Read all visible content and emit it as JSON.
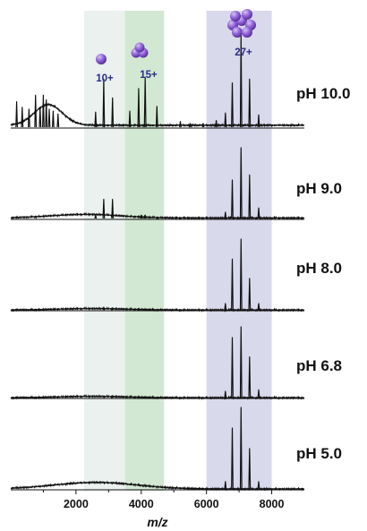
{
  "chart_data": {
    "type": "line",
    "title": "",
    "xlabel": "m/z",
    "ylabel": "",
    "xlim": [
      0,
      9000
    ],
    "x_ticks": [
      "2000",
      "4000",
      "6000",
      "8000"
    ],
    "x_tick_values": [
      2000,
      4000,
      6000,
      8000
    ],
    "grid": false,
    "highlight_bands": [
      {
        "x_range": [
          2250,
          3500
        ],
        "color": "#eaf1ee"
      },
      {
        "x_range": [
          3500,
          4700
        ],
        "color": "#d2e8d2"
      },
      {
        "x_range": [
          6000,
          8000
        ],
        "color": "#d9d9ec"
      }
    ],
    "annotations": [
      {
        "label": "10+",
        "x": 2850,
        "icon": "single-sphere-icon"
      },
      {
        "label": "15+",
        "x": 4120,
        "icon": "sphere-dimer-icon"
      },
      {
        "label": "27+",
        "x": 7050,
        "icon": "sphere-cluster-icon"
      }
    ],
    "series": [
      {
        "name": "pH 10.0",
        "baseline": 0.03,
        "broad_hump": {
          "center": 1150,
          "width": 600,
          "height": 0.22
        },
        "peaks": [
          [
            180,
            0.28
          ],
          [
            350,
            0.22
          ],
          [
            560,
            0.2
          ],
          [
            760,
            0.35
          ],
          [
            900,
            0.22
          ],
          [
            1000,
            0.35
          ],
          [
            1090,
            0.3
          ],
          [
            1180,
            0.2
          ],
          [
            1300,
            0.18
          ],
          [
            1450,
            0.15
          ],
          [
            2600,
            0.17
          ],
          [
            2850,
            0.52
          ],
          [
            3120,
            0.32
          ],
          [
            3650,
            0.18
          ],
          [
            3920,
            0.42
          ],
          [
            4120,
            0.54
          ],
          [
            4480,
            0.23
          ],
          [
            5200,
            0.07
          ],
          [
            5500,
            0.05
          ],
          [
            5900,
            0.05
          ],
          [
            6300,
            0.08
          ],
          [
            6580,
            0.16
          ],
          [
            6790,
            0.48
          ],
          [
            7060,
            1.0
          ],
          [
            7320,
            0.52
          ],
          [
            7600,
            0.14
          ]
        ]
      },
      {
        "name": "pH 9.0",
        "baseline": 0.02,
        "broad_hump": {
          "center": 2300,
          "width": 1500,
          "height": 0.05
        },
        "peaks": [
          [
            2600,
            0.06
          ],
          [
            2850,
            0.28
          ],
          [
            3120,
            0.28
          ],
          [
            4000,
            0.06
          ],
          [
            4120,
            0.06
          ],
          [
            6580,
            0.1
          ],
          [
            6790,
            0.55
          ],
          [
            7060,
            1.0
          ],
          [
            7320,
            0.62
          ],
          [
            7600,
            0.16
          ]
        ]
      },
      {
        "name": "pH 8.0",
        "baseline": 0.01,
        "broad_hump": {
          "center": 2500,
          "width": 1500,
          "height": 0.02
        },
        "peaks": [
          [
            2850,
            0.05
          ],
          [
            3120,
            0.04
          ],
          [
            6580,
            0.1
          ],
          [
            6790,
            0.72
          ],
          [
            7060,
            1.0
          ],
          [
            7320,
            0.45
          ],
          [
            7600,
            0.1
          ]
        ]
      },
      {
        "name": "pH 6.8",
        "baseline": 0.01,
        "broad_hump": {
          "center": 2500,
          "width": 1500,
          "height": 0.02
        },
        "peaks": [
          [
            3120,
            0.04
          ],
          [
            6580,
            0.1
          ],
          [
            6790,
            0.85
          ],
          [
            7060,
            1.0
          ],
          [
            7320,
            0.58
          ],
          [
            7600,
            0.12
          ]
        ]
      },
      {
        "name": "pH 5.0",
        "baseline": 0.01,
        "broad_hump": {
          "center": 2600,
          "width": 1800,
          "height": 0.08
        },
        "peaks": [
          [
            6580,
            0.1
          ],
          [
            6790,
            0.75
          ],
          [
            7060,
            1.0
          ],
          [
            7320,
            0.5
          ],
          [
            7600,
            0.1
          ]
        ]
      }
    ],
    "colors": {
      "trace": "#111111",
      "annotation": "#2c2c8c",
      "sphere": "#8e62d6",
      "sphere_dark": "#5b2f9a"
    }
  }
}
